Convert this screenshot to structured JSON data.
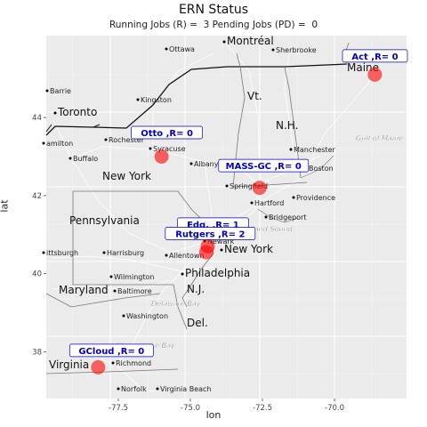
{
  "title": "ERN Status",
  "subtitle": "Running Jobs (R) =  3 Pending Jobs (PD) =  0",
  "axes": {
    "xlabel": "lon",
    "ylabel": "lat",
    "x_ticks": [
      "-77.5",
      "-75.0",
      "-72.5",
      "-70.0"
    ],
    "y_ticks": [
      "38",
      "40",
      "42",
      "44"
    ]
  },
  "map_labels": [
    {
      "name": "Montréal",
      "size": "region"
    },
    {
      "name": "Ottawa",
      "size": "city"
    },
    {
      "name": "Sherbrooke",
      "size": "city"
    },
    {
      "name": "Maine",
      "size": "state"
    },
    {
      "name": "Barrie",
      "size": "city"
    },
    {
      "name": "Kingston",
      "size": "city"
    },
    {
      "name": "Vt.",
      "size": "state"
    },
    {
      "name": "Toronto",
      "size": "region"
    },
    {
      "name": "N.H.",
      "size": "state"
    },
    {
      "name": "amilton",
      "size": "city"
    },
    {
      "name": "Rochester",
      "size": "city"
    },
    {
      "name": "Syracuse",
      "size": "city"
    },
    {
      "name": "Gulf of Maine",
      "size": "water"
    },
    {
      "name": "Buffalo",
      "size": "city"
    },
    {
      "name": "Manchester",
      "size": "city"
    },
    {
      "name": "Albany",
      "size": "city"
    },
    {
      "name": "Mass.",
      "size": "state"
    },
    {
      "name": "Boston",
      "size": "city"
    },
    {
      "name": "New York",
      "size": "state"
    },
    {
      "name": "Springfield",
      "size": "city"
    },
    {
      "name": "Providence",
      "size": "city"
    },
    {
      "name": "Hartford",
      "size": "city"
    },
    {
      "name": "Pennsylvania",
      "size": "state"
    },
    {
      "name": "Bridgeport",
      "size": "city"
    },
    {
      "name": "Long Island Sound",
      "size": "water"
    },
    {
      "name": "Newark",
      "size": "city"
    },
    {
      "name": "New York",
      "size": "region"
    },
    {
      "name": "ittsburgh",
      "size": "city"
    },
    {
      "name": "Harrisburg",
      "size": "city"
    },
    {
      "name": "Allentown",
      "size": "city"
    },
    {
      "name": "Philadelphia",
      "size": "region"
    },
    {
      "name": "Wilmington",
      "size": "city"
    },
    {
      "name": "Maryland",
      "size": "state"
    },
    {
      "name": "N.J.",
      "size": "state"
    },
    {
      "name": "Baltimore",
      "size": "city"
    },
    {
      "name": "Delaware Bay",
      "size": "water"
    },
    {
      "name": "Washington",
      "size": "city"
    },
    {
      "name": "Del.",
      "size": "state"
    },
    {
      "name": "Chesapeake Bay",
      "size": "water"
    },
    {
      "name": "Virginia",
      "size": "state"
    },
    {
      "name": "Richmond",
      "size": "city"
    },
    {
      "name": "Norfolk",
      "size": "city"
    },
    {
      "name": "Virginia Beach",
      "size": "city"
    }
  ],
  "chart_data": {
    "type": "scatter",
    "title": "ERN Status",
    "subtitle": "Running Jobs (R) =  3 Pending Jobs (PD) =  0",
    "xlabel": "lon",
    "ylabel": "lat",
    "xlim": [
      -80.0,
      -67.5
    ],
    "ylim": [
      36.8,
      46.1
    ],
    "x_ticks": [
      -77.5,
      -75.0,
      -72.5,
      -70.0
    ],
    "y_ticks": [
      38,
      40,
      42,
      44
    ],
    "grid": true,
    "marker_color": "#ff0000",
    "label_text_color": "#0000cc",
    "points": [
      {
        "label": "Act ,R= 0",
        "lon": -68.6,
        "lat": 45.1
      },
      {
        "label": "Otto ,R= 0",
        "lon": -76.0,
        "lat": 43.0
      },
      {
        "label": "MASS-GC ,R= 0",
        "lon": -72.6,
        "lat": 42.2
      },
      {
        "label": "Edg. ,R= 1",
        "lon": -74.4,
        "lat": 40.7
      },
      {
        "label": "Rutgers ,R= 2",
        "lon": -74.45,
        "lat": 40.55
      },
      {
        "label": "GCloud ,R= 0",
        "lon": -78.2,
        "lat": 37.6
      }
    ]
  }
}
